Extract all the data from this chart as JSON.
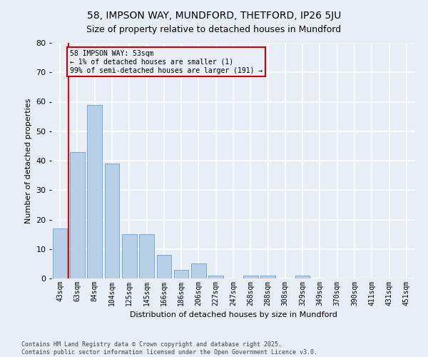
{
  "title": "58, IMPSON WAY, MUNDFORD, THETFORD, IP26 5JU",
  "subtitle": "Size of property relative to detached houses in Mundford",
  "xlabel": "Distribution of detached houses by size in Mundford",
  "ylabel": "Number of detached properties",
  "categories": [
    "43sqm",
    "63sqm",
    "84sqm",
    "104sqm",
    "125sqm",
    "145sqm",
    "166sqm",
    "186sqm",
    "206sqm",
    "227sqm",
    "247sqm",
    "268sqm",
    "288sqm",
    "308sqm",
    "329sqm",
    "349sqm",
    "370sqm",
    "390sqm",
    "411sqm",
    "431sqm",
    "451sqm"
  ],
  "values": [
    17,
    43,
    59,
    39,
    15,
    15,
    8,
    3,
    5,
    1,
    0,
    1,
    1,
    0,
    1,
    0,
    0,
    0,
    0,
    0,
    0
  ],
  "bar_color": "#b8cfe8",
  "bar_edge_color": "#6a9fd0",
  "ylim": [
    0,
    80
  ],
  "yticks": [
    0,
    10,
    20,
    30,
    40,
    50,
    60,
    70,
    80
  ],
  "annotation_box_text": "58 IMPSON WAY: 53sqm\n← 1% of detached houses are smaller (1)\n99% of semi-detached houses are larger (191) →",
  "annotation_box_color": "#cc0000",
  "vline_x_index": 0.5,
  "background_color": "#e8eef5",
  "grid_color": "#ffffff",
  "footer_line1": "Contains HM Land Registry data © Crown copyright and database right 2025.",
  "footer_line2": "Contains public sector information licensed under the Open Government Licence v3.0.",
  "title_fontsize": 10,
  "subtitle_fontsize": 9,
  "axis_label_fontsize": 8,
  "tick_fontsize": 7,
  "footer_fontsize": 6
}
